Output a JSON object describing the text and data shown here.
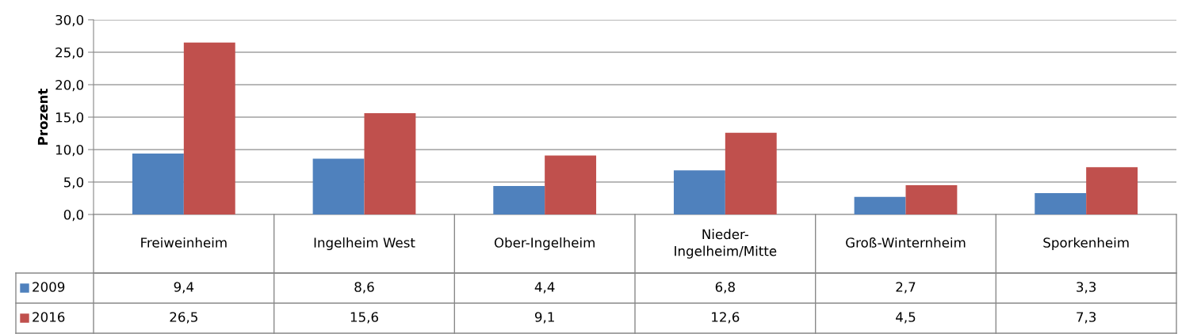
{
  "chart_data": {
    "type": "bar",
    "ylabel": "Prozent",
    "categories": [
      "Freiweinheim",
      "Ingelheim West",
      "Ober-Ingelheim",
      "Nieder-\nIngelheim/Mitte",
      "Groß-Winternheim",
      "Sporkenheim"
    ],
    "series": [
      {
        "name": "2009",
        "color": "#4f81bd",
        "values": [
          9.4,
          8.6,
          4.4,
          6.8,
          2.7,
          3.3
        ],
        "value_labels": [
          "9,4",
          "8,6",
          "4,4",
          "6,8",
          "2,7",
          "3,3"
        ]
      },
      {
        "name": "2016",
        "color": "#c0504d",
        "values": [
          26.5,
          15.6,
          9.1,
          12.6,
          4.5,
          7.3
        ],
        "value_labels": [
          "26,5",
          "15,6",
          "9,1",
          "12,6",
          "4,5",
          "7,3"
        ]
      }
    ],
    "ylim": [
      0,
      30
    ],
    "yticks": [
      {
        "value": 0,
        "label": "0,0"
      },
      {
        "value": 5,
        "label": "5,0"
      },
      {
        "value": 10,
        "label": "10,0"
      },
      {
        "value": 15,
        "label": "15,0"
      },
      {
        "value": 20,
        "label": "20,0"
      },
      {
        "value": 25,
        "label": "25,0"
      },
      {
        "value": 30,
        "label": "30,0"
      }
    ],
    "grid": "y",
    "legend": "bottom left"
  }
}
